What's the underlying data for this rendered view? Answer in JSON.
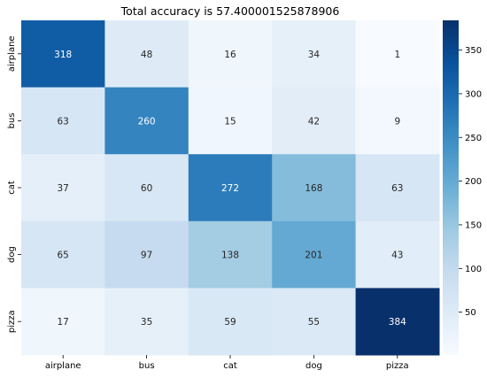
{
  "chart_data": {
    "type": "heatmap",
    "title": "Total accuracy is 57.400001525878906",
    "xlabel": "",
    "ylabel": "",
    "x_categories": [
      "airplane",
      "bus",
      "cat",
      "dog",
      "pizza"
    ],
    "y_categories": [
      "airplane",
      "bus",
      "cat",
      "dog",
      "pizza"
    ],
    "values": [
      [
        318,
        48,
        16,
        34,
        1
      ],
      [
        63,
        260,
        15,
        42,
        9
      ],
      [
        37,
        60,
        272,
        168,
        63
      ],
      [
        65,
        97,
        138,
        201,
        43
      ],
      [
        17,
        35,
        59,
        55,
        384
      ]
    ],
    "colormap": "Blues",
    "color_range": [
      1,
      384
    ],
    "colorbar_ticks": [
      50,
      100,
      150,
      200,
      250,
      300,
      350
    ],
    "grid": false,
    "colorbar_placement": "right"
  }
}
